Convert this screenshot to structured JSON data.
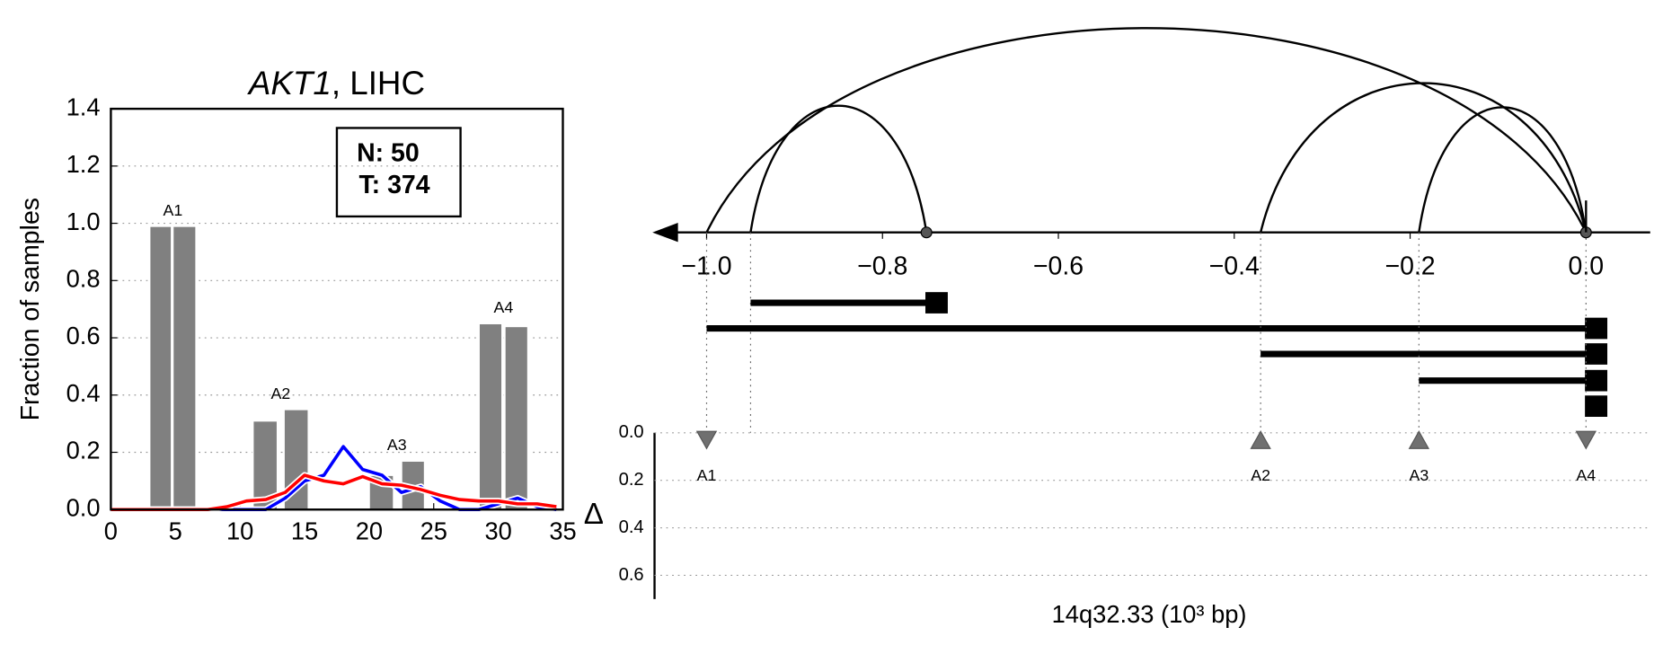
{
  "chart_data": [
    {
      "type": "bar",
      "title": {
        "gene": "AKT1",
        "text": ", LIHC"
      },
      "ylabel": "Fraction of samples",
      "xlim": [
        0,
        35
      ],
      "xticks": [
        0,
        5,
        10,
        15,
        20,
        25,
        30,
        35
      ],
      "ylim": [
        0,
        1.4
      ],
      "yticks": [
        {
          "value": 0,
          "label": "0.0"
        },
        {
          "value": 0.2,
          "label": "0.2"
        },
        {
          "value": 0.4,
          "label": "0.4"
        },
        {
          "value": 0.6,
          "label": "0.6"
        },
        {
          "value": 0.8,
          "label": "0.8"
        },
        {
          "value": 1.0,
          "label": "1.0"
        },
        {
          "value": 1.2,
          "label": "1.2"
        },
        {
          "value": 1.4,
          "label": "1.4"
        }
      ],
      "grid": true,
      "annotation": [
        "N: 50",
        "T: 374"
      ],
      "bars": {
        "color": "#808080",
        "x0": [
          3,
          4.8,
          11,
          13.4,
          20,
          22.5,
          28.5,
          30.5
        ],
        "x1": [
          4.7,
          6.6,
          12.9,
          15.3,
          21.9,
          24.3,
          30.3,
          32.3
        ],
        "values": [
          0.99,
          0.99,
          0.31,
          0.35,
          0.12,
          0.17,
          0.65,
          0.64
        ]
      },
      "bar_labels": [
        "A1",
        "A2",
        "A3",
        "A4"
      ],
      "x": [
        0,
        1.5,
        3,
        4.5,
        6,
        7.5,
        9,
        10.5,
        12,
        13.5,
        15,
        16.5,
        18,
        19.5,
        21,
        22.5,
        24,
        25.5,
        27,
        28.5,
        30,
        31.5,
        33,
        34.5
      ],
      "series": [
        {
          "color": "#0000ff",
          "values": [
            0,
            0,
            0,
            0,
            0,
            0,
            0,
            0,
            0,
            0.04,
            0.1,
            0.12,
            0.22,
            0.14,
            0.12,
            0.06,
            0.08,
            0.03,
            0,
            0,
            0.02,
            0.04,
            0.01,
            0
          ]
        },
        {
          "color": "#ff0000",
          "values": [
            0,
            0,
            0,
            0,
            0,
            0,
            0.01,
            0.03,
            0.035,
            0.06,
            0.12,
            0.1,
            0.09,
            0.115,
            0.09,
            0.085,
            0.07,
            0.05,
            0.035,
            0.03,
            0.03,
            0.02,
            0.02,
            0.01
          ]
        }
      ]
    },
    {
      "type": "splice",
      "xlabel": "14q32.33 (10³ bp)",
      "ylabel": "Δ",
      "xlim": [
        -1.058,
        0.073
      ],
      "xticks": [
        {
          "value": -1.0,
          "label": "−1.0"
        },
        {
          "value": -0.8,
          "label": "−0.8"
        },
        {
          "value": -0.6,
          "label": "−0.6"
        },
        {
          "value": -0.4,
          "label": "−0.4"
        },
        {
          "value": -0.2,
          "label": "−0.2"
        },
        {
          "value": 0,
          "label": "0.0"
        }
      ],
      "ylim": [
        0,
        0.7
      ],
      "yticks": [
        {
          "value": 0,
          "label": "0.0"
        },
        {
          "value": 0.2,
          "label": "0.2"
        },
        {
          "value": 0.4,
          "label": "0.4"
        },
        {
          "value": 0.6,
          "label": "0.6"
        }
      ],
      "junctions": {
        "start": [
          -0.95,
          -1.0,
          -0.37,
          -0.19
        ],
        "end": [
          -0.75,
          0,
          0,
          0
        ]
      },
      "sites": [
        -0.75,
        0
      ],
      "transcripts": {
        "start": [
          -0.95,
          -1.0,
          -0.37,
          -0.19,
          0
        ],
        "end": [
          -0.75,
          0,
          0,
          0,
          0
        ]
      },
      "events": {
        "labels": [
          "A1",
          "A2",
          "A3",
          "A4"
        ],
        "x": [
          -1.0,
          -0.37,
          -0.19,
          0
        ],
        "values": [
          0.03,
          0.03,
          0.03,
          0.03
        ],
        "direction": [
          "down",
          "up",
          "up",
          "down"
        ],
        "color": "#707070"
      }
    }
  ]
}
